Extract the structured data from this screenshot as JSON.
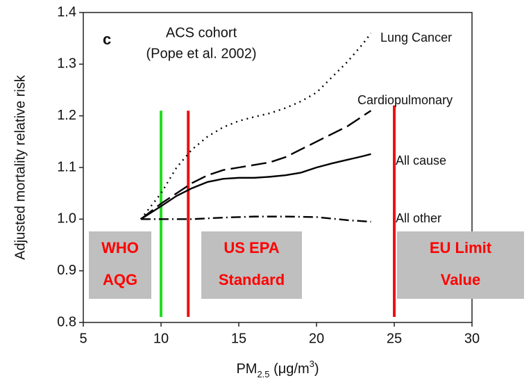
{
  "chart_data": {
    "type": "line",
    "panel_letter": "c",
    "annotations": [
      "ACS cohort",
      "(Pope et al. 2002)"
    ],
    "ylabel": "Adjusted mortality relative risk",
    "xlabel": [
      "PM",
      "2.5",
      " (μg/m",
      "3",
      ")"
    ],
    "xlim": [
      5,
      30
    ],
    "xticks": [
      5,
      10,
      15,
      20,
      25,
      30
    ],
    "ylim": [
      0.8,
      1.4
    ],
    "yticks": [
      0.8,
      0.9,
      {
        "value": 1,
        "label": "1.0"
      },
      1.1,
      1.2,
      1.3,
      1.4
    ],
    "series": [
      {
        "name": "Lung Cancer",
        "color": "#000000",
        "dash": "2 6",
        "x": [
          8.7,
          10,
          11,
          12,
          13,
          14,
          15,
          16,
          17,
          18,
          19,
          20,
          21,
          22,
          23,
          23.5
        ],
        "values": [
          1.0,
          1.05,
          1.1,
          1.135,
          1.16,
          1.178,
          1.19,
          1.198,
          1.205,
          1.215,
          1.228,
          1.245,
          1.275,
          1.305,
          1.34,
          1.36
        ]
      },
      {
        "name": "Cardiopulmonary",
        "color": "#000000",
        "dash": "22 8",
        "x": [
          8.7,
          10,
          11,
          12,
          13,
          14,
          15,
          16,
          17,
          18,
          19,
          20,
          21,
          22,
          23,
          23.5
        ],
        "values": [
          1.0,
          1.03,
          1.05,
          1.07,
          1.085,
          1.095,
          1.1,
          1.105,
          1.11,
          1.12,
          1.135,
          1.15,
          1.165,
          1.18,
          1.2,
          1.21
        ]
      },
      {
        "name": "All cause",
        "color": "#000000",
        "dash": "none",
        "x": [
          8.7,
          10,
          11,
          12,
          13,
          14,
          15,
          16,
          17,
          18,
          19,
          20,
          21,
          22,
          23,
          23.5
        ],
        "values": [
          1.0,
          1.025,
          1.045,
          1.06,
          1.072,
          1.078,
          1.08,
          1.08,
          1.082,
          1.085,
          1.09,
          1.1,
          1.108,
          1.115,
          1.122,
          1.126
        ]
      },
      {
        "name": "All other",
        "color": "#000000",
        "dash": "14 5 2 5",
        "x": [
          8.7,
          10,
          12,
          14,
          16,
          18,
          20,
          22,
          23.5
        ],
        "values": [
          1.0,
          1.0,
          1.0,
          1.003,
          1.005,
          1.005,
          1.004,
          0.998,
          0.995
        ]
      }
    ],
    "reference_lines": [
      {
        "x": 10,
        "top": 1.21,
        "color": "#22dd22"
      },
      {
        "x": 11.75,
        "top": 1.21,
        "color": "#ee1111"
      },
      {
        "x": 25,
        "top": 1.22,
        "color": "#ee1111"
      }
    ],
    "standard_labels": [
      [
        "WHO",
        "AQG"
      ],
      [
        "US EPA",
        "Standard"
      ],
      [
        "EU Limit",
        "Value"
      ]
    ]
  }
}
